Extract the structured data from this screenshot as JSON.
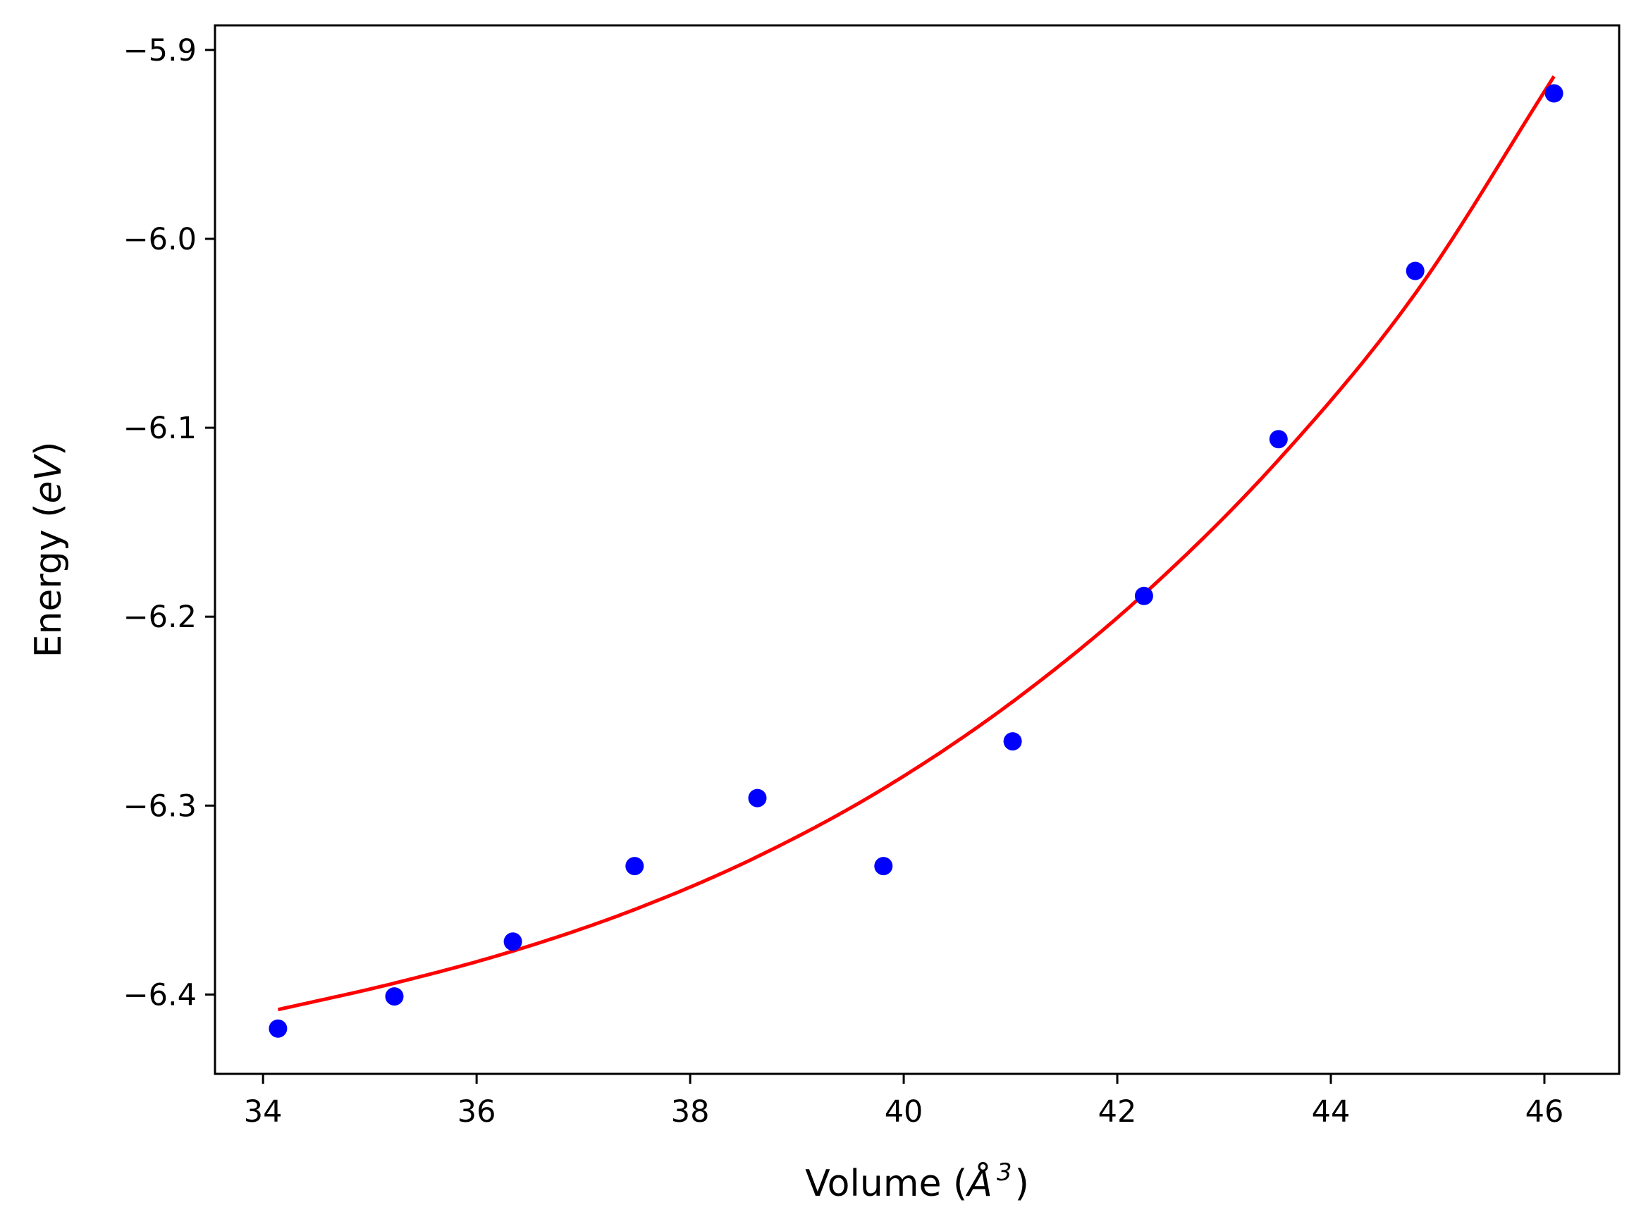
{
  "chart_data": {
    "type": "scatter",
    "title": "",
    "xlabel": {
      "prefix": "Volume (",
      "symbol": "Å",
      "exponent": "3",
      "suffix": ")"
    },
    "ylabel": {
      "prefix": "Energy (",
      "unit": "eV",
      "suffix": ")"
    },
    "xlim": [
      33.55,
      46.7
    ],
    "ylim": [
      -6.442,
      -5.887
    ],
    "xticks": [
      34,
      36,
      38,
      40,
      42,
      44,
      46
    ],
    "xtick_labels": [
      "34",
      "36",
      "38",
      "40",
      "42",
      "44",
      "46"
    ],
    "yticks": [
      -6.4,
      -6.3,
      -6.2,
      -6.1,
      -6.0,
      -5.9
    ],
    "ytick_labels": [
      "−6.4",
      "−6.3",
      "−6.2",
      "−6.1",
      "−6.0",
      "−5.9"
    ],
    "grid": false,
    "series": [
      {
        "type": "scatter",
        "color": "#0000ff",
        "x": [
          34.14,
          35.23,
          36.34,
          37.48,
          38.63,
          39.81,
          41.02,
          42.25,
          43.51,
          44.79,
          46.09
        ],
        "y": [
          -6.418,
          -6.401,
          -6.372,
          -6.332,
          -6.296,
          -6.332,
          -6.266,
          -6.189,
          -6.106,
          -6.017,
          -5.923
        ]
      },
      {
        "type": "line",
        "color": "#ff0000",
        "x": [
          34.14,
          35.23,
          36.34,
          37.48,
          38.63,
          39.81,
          41.02,
          42.25,
          43.51,
          44.79,
          46.09
        ],
        "y": [
          -6.408,
          -6.394,
          -6.377,
          -6.355,
          -6.327,
          -6.291,
          -6.245,
          -6.188,
          -6.117,
          -6.029,
          -5.914
        ]
      }
    ]
  }
}
